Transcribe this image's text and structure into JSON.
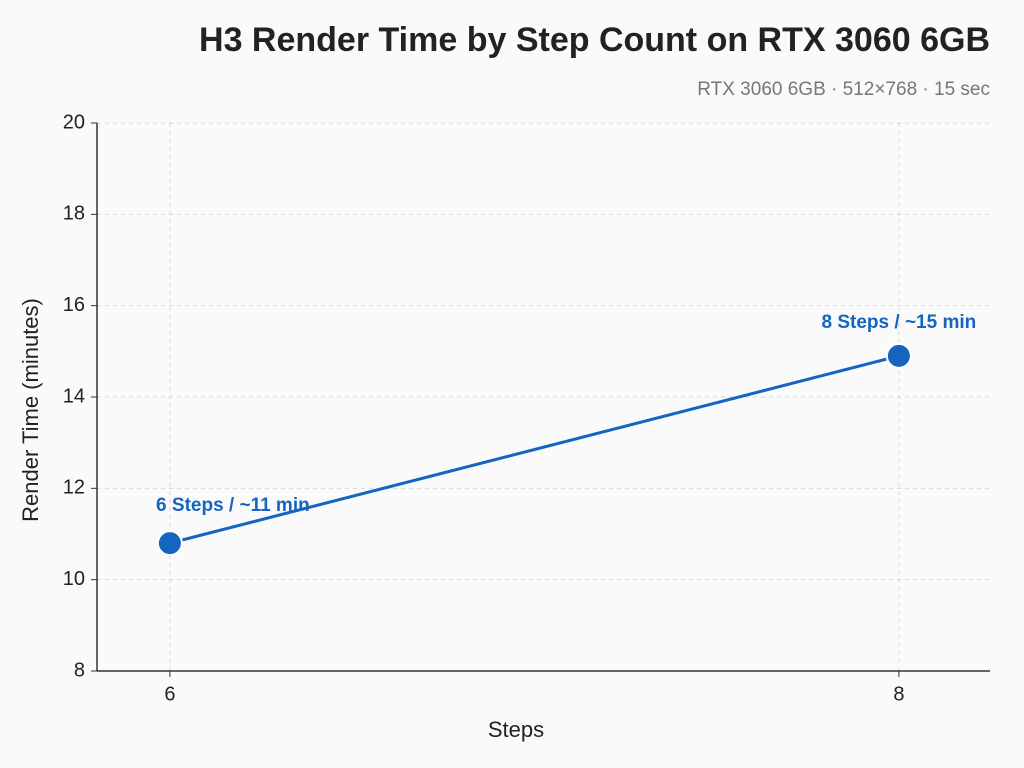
{
  "chart_data": {
    "type": "line",
    "title": "H3 Render Time by Step Count on RTX 3060 6GB",
    "subtitle": "RTX 3060 6GB · 512×768 · 15 sec",
    "x_label": "Steps",
    "y_label": "Render Time (minutes)",
    "x": [
      6,
      8
    ],
    "values": [
      10.8,
      14.9
    ],
    "value_labels": [
      "6 Steps / ~11 min",
      "8 Steps / ~15 min"
    ],
    "color": "#1565c0",
    "xlim": [
      5.8,
      8.25
    ],
    "xticks": [
      6,
      8
    ],
    "ylim": [
      8,
      20
    ],
    "yticks": [
      8,
      10,
      12,
      14,
      16,
      18,
      20
    ],
    "grid": true
  }
}
